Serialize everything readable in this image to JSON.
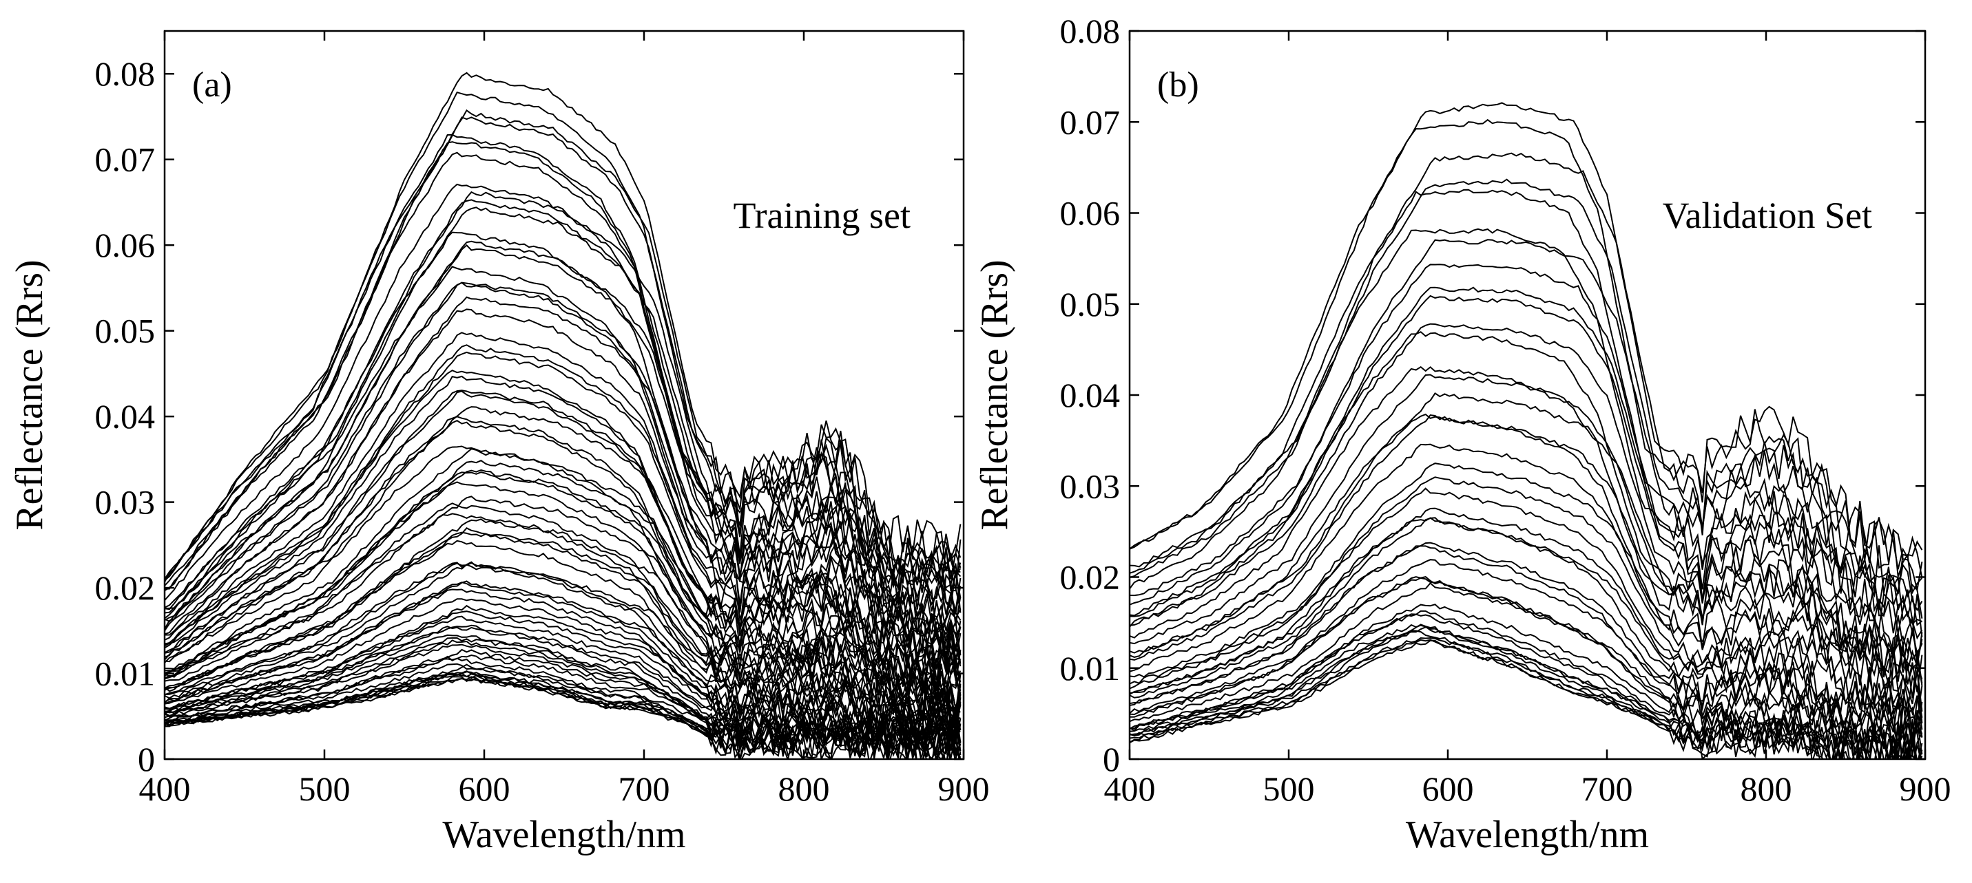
{
  "chart_data": [
    {
      "type": "line",
      "panel_label": "(a)",
      "annotation": "Training set",
      "xlabel": "Wavelength/nm",
      "ylabel": "Reflectance (Rrs)",
      "xlim": [
        400,
        900
      ],
      "ylim": [
        0,
        0.085
      ],
      "x_ticks": [
        "400",
        "500",
        "600",
        "700",
        "800",
        "900"
      ],
      "y_ticks": [
        "0",
        "0.01",
        "0.02",
        "0.03",
        "0.04",
        "0.05",
        "0.06",
        "0.07",
        "0.08"
      ],
      "n_series": 70,
      "envelope": {
        "x": [
          400,
          450,
          500,
          550,
          585,
          640,
          680,
          700,
          730,
          750,
          800,
          820,
          850,
          900
        ],
        "upper": [
          0.021,
          0.034,
          0.045,
          0.068,
          0.08,
          0.078,
          0.072,
          0.065,
          0.04,
          0.033,
          0.036,
          0.039,
          0.026,
          0.025
        ],
        "lower": [
          0.004,
          0.005,
          0.006,
          0.008,
          0.0095,
          0.008,
          0.006,
          0.006,
          0.004,
          0.002,
          0.002,
          0.002,
          0.002,
          0.001
        ]
      }
    },
    {
      "type": "line",
      "panel_label": "(b)",
      "annotation": "Validation Set",
      "xlabel": "Wavelength/nm",
      "ylabel": "Reflectance (Rrs)",
      "xlim": [
        400,
        900
      ],
      "ylim": [
        0,
        0.08
      ],
      "x_ticks": [
        "400",
        "500",
        "600",
        "700",
        "800",
        "900"
      ],
      "y_ticks": [
        "0",
        "0.01",
        "0.02",
        "0.03",
        "0.04",
        "0.05",
        "0.06",
        "0.07",
        "0.08"
      ],
      "n_series": 40,
      "envelope": {
        "x": [
          400,
          450,
          500,
          550,
          585,
          640,
          680,
          700,
          730,
          750,
          800,
          820,
          850,
          900
        ],
        "upper": [
          0.023,
          0.028,
          0.038,
          0.06,
          0.071,
          0.072,
          0.07,
          0.062,
          0.035,
          0.032,
          0.038,
          0.036,
          0.027,
          0.022
        ],
        "lower": [
          0.002,
          0.004,
          0.006,
          0.011,
          0.013,
          0.01,
          0.007,
          0.006,
          0.004,
          0.002,
          0.002,
          0.002,
          0.0,
          0.0
        ]
      }
    }
  ]
}
